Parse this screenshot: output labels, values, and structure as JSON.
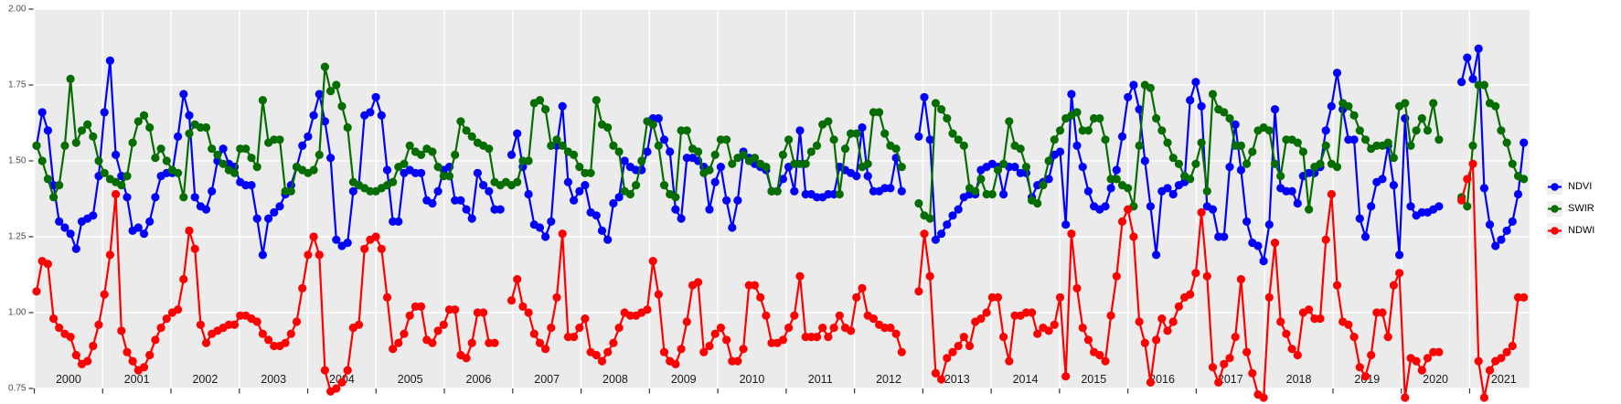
{
  "chart_data": {
    "type": "line",
    "title": "",
    "xlabel": "",
    "ylabel": "",
    "x_start_year": 2000,
    "points_per_year": 12,
    "ylim": [
      0.75,
      2.0
    ],
    "grid": "on",
    "panel_background": "#EBEBEB",
    "gridline_color": "#FFFFFF",
    "tick_color": "#333333",
    "y_tick_labels": [
      "2.00",
      "1.75",
      "1.50",
      "1.25",
      "1.00",
      "0.75"
    ],
    "y_tick_values": [
      2.0,
      1.75,
      1.5,
      1.25,
      1.0,
      0.75
    ],
    "x_tick_labels": [
      "2000",
      "2001",
      "2002",
      "2003",
      "2004",
      "2005",
      "2006",
      "2007",
      "2008",
      "2009",
      "2010",
      "2011",
      "2012",
      "2013",
      "2014",
      "2015",
      "2016",
      "2017",
      "2018",
      "2019",
      "2020",
      "2021"
    ],
    "legend_position": "right",
    "series": [
      {
        "name": "NDVI",
        "color": "#0000FF",
        "values_by_year": [
          [
            1.55,
            1.66,
            1.6,
            1.42,
            1.3,
            1.28,
            1.26,
            1.21,
            1.3,
            1.31,
            1.32,
            1.45
          ],
          [
            1.66,
            1.83,
            1.52,
            1.45,
            1.38,
            1.27,
            1.28,
            1.26,
            1.3,
            1.38,
            1.45,
            1.46
          ],
          [
            1.46,
            1.58,
            1.72,
            1.65,
            1.38,
            1.35,
            1.34,
            1.4,
            1.5,
            1.54,
            1.49,
            1.48
          ],
          [
            1.43,
            1.42,
            1.42,
            1.31,
            1.19,
            1.31,
            1.33,
            1.35,
            1.39,
            1.42,
            1.48,
            1.55
          ],
          [
            1.58,
            1.65,
            1.72,
            1.63,
            1.51,
            1.24,
            1.22,
            1.23,
            1.4,
            1.42,
            1.65,
            1.66
          ],
          [
            1.71,
            1.65,
            1.47,
            1.3,
            1.3,
            1.46,
            1.47,
            1.46,
            1.46,
            1.37,
            1.36,
            1.4
          ],
          [
            1.47,
            1.48,
            1.37,
            1.37,
            1.34,
            1.31,
            1.46,
            1.42,
            1.4,
            1.34,
            1.34,
            null
          ],
          [
            1.52,
            1.59,
            1.48,
            1.39,
            1.29,
            1.28,
            1.25,
            1.3,
            1.55,
            1.68,
            1.43,
            1.37
          ],
          [
            1.4,
            1.42,
            1.33,
            1.32,
            1.27,
            1.24,
            1.36,
            1.38,
            1.5,
            1.48,
            1.47,
            1.47
          ],
          [
            1.53,
            1.64,
            1.64,
            1.57,
            1.53,
            1.34,
            1.31,
            1.51,
            1.51,
            1.5,
            1.48,
            1.34
          ],
          [
            1.43,
            1.48,
            1.37,
            1.28,
            1.37,
            1.53,
            1.51,
            1.49,
            1.48,
            1.47,
            1.4,
            1.4
          ],
          [
            1.44,
            1.48,
            1.4,
            1.6,
            1.39,
            1.39,
            1.38,
            1.38,
            1.39,
            1.39,
            1.48,
            1.47
          ],
          [
            1.46,
            1.45,
            1.61,
            1.45,
            1.4,
            1.4,
            1.41,
            1.41,
            1.51,
            1.4,
            null,
            null
          ],
          [
            1.58,
            1.71,
            1.57,
            1.24,
            1.26,
            1.29,
            1.32,
            1.34,
            1.38,
            1.39,
            1.39,
            1.47
          ],
          [
            1.48,
            1.49,
            1.48,
            1.39,
            1.48,
            1.48,
            1.46,
            1.46,
            1.38,
            1.42,
            1.43,
            1.44
          ],
          [
            1.52,
            1.53,
            1.29,
            1.72,
            1.55,
            1.48,
            1.4,
            1.35,
            1.34,
            1.35,
            1.41,
            1.47
          ],
          [
            1.58,
            1.71,
            1.75,
            1.67,
            1.5,
            1.35,
            1.19,
            1.4,
            1.41,
            1.39,
            1.42,
            1.43
          ],
          [
            1.7,
            1.76,
            1.68,
            1.35,
            1.34,
            1.25,
            1.25,
            1.48,
            1.62,
            1.47,
            1.3,
            1.23
          ],
          [
            1.22,
            1.17,
            1.29,
            1.67,
            1.41,
            1.4,
            1.4,
            1.36,
            1.45,
            1.46,
            1.46,
            1.48
          ],
          [
            1.6,
            1.68,
            1.79,
            1.67,
            1.57,
            1.57,
            1.31,
            1.25,
            1.35,
            1.43,
            1.44,
            1.55
          ],
          [
            1.42,
            1.19,
            1.64,
            1.35,
            1.32,
            1.33,
            1.33,
            1.34,
            1.35,
            null,
            null,
            null
          ],
          [
            1.76,
            1.84,
            1.77,
            1.87,
            1.41,
            1.29,
            1.22,
            1.24,
            1.27,
            1.3,
            1.39,
            1.56
          ]
        ]
      },
      {
        "name": "SWIR",
        "color": "#066E00",
        "values_by_year": [
          [
            1.55,
            1.5,
            1.44,
            1.38,
            1.42,
            1.55,
            1.77,
            1.56,
            1.6,
            1.62,
            1.58,
            1.5
          ],
          [
            1.46,
            1.44,
            1.43,
            1.42,
            1.45,
            1.56,
            1.63,
            1.65,
            1.61,
            1.51,
            1.54,
            1.5
          ],
          [
            1.47,
            1.46,
            1.38,
            1.59,
            1.62,
            1.61,
            1.61,
            1.54,
            1.52,
            1.49,
            1.47,
            1.46
          ],
          [
            1.54,
            1.54,
            1.51,
            1.48,
            1.7,
            1.56,
            1.57,
            1.57,
            1.4,
            1.4,
            1.48,
            1.47
          ],
          [
            1.46,
            1.47,
            1.52,
            1.81,
            1.73,
            1.75,
            1.68,
            1.61,
            1.43,
            1.42,
            1.41,
            1.4
          ],
          [
            1.4,
            1.41,
            1.42,
            1.43,
            1.48,
            1.49,
            1.55,
            1.53,
            1.52,
            1.54,
            1.53,
            1.48
          ],
          [
            1.45,
            1.45,
            1.52,
            1.63,
            1.6,
            1.58,
            1.56,
            1.55,
            1.54,
            1.43,
            1.42,
            1.43
          ],
          [
            1.42,
            1.43,
            1.5,
            1.5,
            1.69,
            1.7,
            1.67,
            1.55,
            1.57,
            1.55,
            1.53,
            1.52
          ],
          [
            1.48,
            1.46,
            1.46,
            1.7,
            1.62,
            1.61,
            1.55,
            1.53,
            1.4,
            1.39,
            1.42,
            1.5
          ],
          [
            1.63,
            1.62,
            1.55,
            1.42,
            1.39,
            1.38,
            1.6,
            1.6,
            1.54,
            1.53,
            1.46,
            1.47
          ],
          [
            1.52,
            1.57,
            1.57,
            1.49,
            1.51,
            1.52,
            1.5,
            1.51,
            1.49,
            1.48,
            1.4,
            1.4
          ],
          [
            1.52,
            1.57,
            1.49,
            1.49,
            1.49,
            1.53,
            1.55,
            1.62,
            1.63,
            1.57,
            1.39,
            1.54
          ],
          [
            1.59,
            1.59,
            1.48,
            1.49,
            1.66,
            1.66,
            1.59,
            1.55,
            1.54,
            1.48,
            null,
            null
          ],
          [
            1.36,
            1.32,
            1.31,
            1.69,
            1.67,
            1.64,
            1.59,
            1.57,
            1.55,
            1.41,
            1.4,
            1.44
          ],
          [
            1.39,
            1.39,
            1.47,
            1.49,
            1.63,
            1.55,
            1.54,
            1.48,
            1.37,
            1.36,
            1.42,
            1.5
          ],
          [
            1.57,
            1.6,
            1.64,
            1.65,
            1.66,
            1.6,
            1.6,
            1.64,
            1.64,
            1.57,
            1.44,
            1.44
          ],
          [
            1.42,
            1.41,
            1.35,
            1.55,
            1.75,
            1.74,
            1.64,
            1.6,
            1.56,
            1.51,
            1.49,
            1.45
          ],
          [
            1.44,
            1.49,
            1.56,
            1.4,
            1.72,
            1.67,
            1.66,
            1.64,
            1.55,
            1.55,
            1.49,
            1.53
          ],
          [
            1.6,
            1.61,
            1.6,
            1.49,
            1.45,
            1.57,
            1.57,
            1.56,
            1.53,
            1.34,
            1.48,
            1.49
          ],
          [
            1.55,
            1.49,
            1.48,
            1.69,
            1.68,
            1.65,
            1.6,
            1.57,
            1.54,
            1.55,
            1.55,
            1.56
          ],
          [
            1.51,
            1.68,
            1.69,
            1.55,
            1.6,
            1.64,
            1.6,
            1.69,
            1.57,
            null,
            null,
            null
          ],
          [
            1.38,
            1.35,
            1.55,
            1.75,
            1.75,
            1.69,
            1.68,
            1.6,
            1.56,
            1.49,
            1.45,
            1.44
          ]
        ]
      },
      {
        "name": "NDWI",
        "color": "#FF0000",
        "values_by_year": [
          [
            1.07,
            1.17,
            1.16,
            0.98,
            0.95,
            0.93,
            0.92,
            0.86,
            0.83,
            0.84,
            0.89,
            0.96
          ],
          [
            1.06,
            1.19,
            1.39,
            0.94,
            0.87,
            0.84,
            0.81,
            0.82,
            0.86,
            0.91,
            0.95,
            0.98
          ],
          [
            1.0,
            1.01,
            1.11,
            1.27,
            1.21,
            0.96,
            0.9,
            0.93,
            0.94,
            0.95,
            0.96,
            0.96
          ],
          [
            0.99,
            0.99,
            0.98,
            0.97,
            0.93,
            0.91,
            0.89,
            0.89,
            0.9,
            0.93,
            0.97,
            1.08
          ],
          [
            1.19,
            1.25,
            1.19,
            0.81,
            0.74,
            0.75,
            0.77,
            0.81,
            0.95,
            0.96,
            1.21,
            1.24
          ],
          [
            1.25,
            1.21,
            1.05,
            0.88,
            0.9,
            0.93,
            0.99,
            1.02,
            1.02,
            0.91,
            0.9,
            0.94
          ],
          [
            0.96,
            1.01,
            1.01,
            0.86,
            0.85,
            0.9,
            1.0,
            1.0,
            0.9,
            0.9,
            null,
            null
          ],
          [
            1.04,
            1.11,
            1.02,
            1.0,
            0.93,
            0.9,
            0.88,
            0.95,
            1.05,
            1.26,
            0.92,
            0.92
          ],
          [
            0.95,
            0.98,
            0.87,
            0.86,
            0.84,
            0.87,
            0.9,
            0.95,
            1.0,
            0.99,
            0.99,
            1.0
          ],
          [
            1.01,
            1.17,
            1.06,
            0.87,
            0.84,
            0.83,
            0.88,
            0.97,
            1.09,
            1.1,
            0.87,
            0.89
          ],
          [
            0.93,
            0.95,
            0.91,
            0.84,
            0.84,
            0.88,
            1.09,
            1.09,
            1.05,
            0.99,
            0.9,
            0.9
          ],
          [
            0.91,
            0.95,
            0.99,
            1.12,
            0.92,
            0.92,
            0.92,
            0.95,
            0.92,
            0.95,
            0.99,
            0.95
          ],
          [
            0.94,
            1.05,
            1.08,
            0.99,
            0.98,
            0.96,
            0.95,
            0.95,
            0.93,
            0.87,
            null,
            null
          ],
          [
            1.07,
            1.26,
            1.12,
            0.8,
            0.78,
            0.85,
            0.87,
            0.89,
            0.92,
            0.89,
            0.97,
            0.98
          ],
          [
            1.0,
            1.05,
            1.05,
            0.92,
            0.84,
            0.99,
            0.99,
            1.0,
            1.0,
            0.93,
            0.95,
            0.94
          ],
          [
            0.96,
            1.05,
            0.79,
            1.26,
            1.08,
            0.95,
            0.91,
            0.87,
            0.86,
            0.84,
            0.99,
            1.12
          ],
          [
            1.3,
            1.34,
            1.25,
            0.97,
            0.9,
            0.77,
            0.91,
            0.98,
            0.94,
            0.97,
            1.02,
            1.05
          ],
          [
            1.06,
            1.13,
            1.33,
            1.12,
            0.82,
            0.77,
            0.83,
            0.85,
            0.92,
            1.11,
            0.87,
            0.8
          ],
          [
            0.73,
            0.72,
            1.05,
            1.23,
            0.97,
            0.93,
            0.88,
            0.86,
            1.0,
            1.01,
            0.98,
            0.98
          ],
          [
            1.24,
            1.39,
            1.09,
            0.97,
            0.96,
            0.92,
            0.82,
            0.79,
            0.86,
            1.0,
            1.0,
            0.92
          ],
          [
            1.09,
            1.13,
            0.72,
            0.85,
            0.84,
            0.81,
            0.85,
            0.87,
            0.87,
            null,
            null,
            null
          ],
          [
            1.37,
            1.44,
            1.49,
            0.84,
            0.72,
            0.81,
            0.84,
            0.85,
            0.87,
            0.89,
            1.05,
            1.05
          ]
        ]
      }
    ]
  }
}
